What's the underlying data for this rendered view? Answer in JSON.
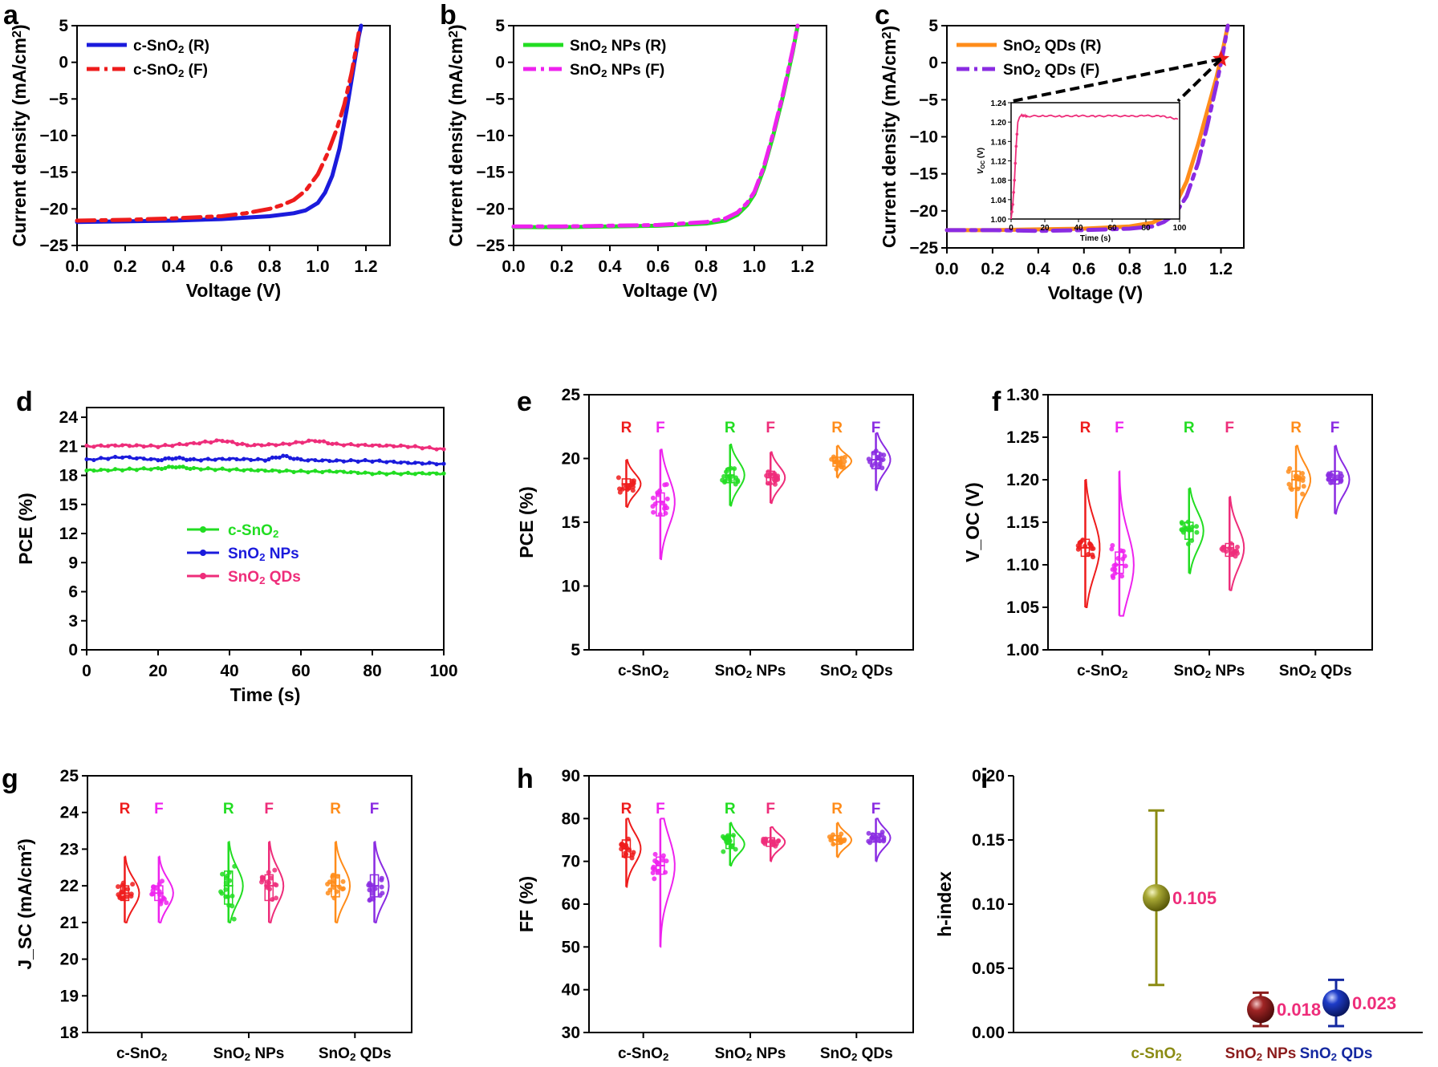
{
  "colors": {
    "blue": "#1b1bdc",
    "red": "#ee1c1c",
    "green": "#22dd22",
    "magenta": "#ee22ee",
    "orange": "#ff8c1a",
    "purple": "#8a2be2",
    "pink": "#ee2d7a",
    "olive": "#8b8b13",
    "maroon": "#8b1c1c",
    "navy": "#1428a0"
  },
  "chart_data": [
    {
      "panel": "a",
      "type": "line",
      "xlabel": "Voltage (V)",
      "ylabel": "Current density (mA/cm²)",
      "xlim": [
        0,
        1.3
      ],
      "ylim": [
        -25,
        5
      ],
      "xticks": [
        "0.0",
        "0.2",
        "0.4",
        "0.6",
        "0.8",
        "1.0",
        "1.2"
      ],
      "yticks": [
        "5",
        "0",
        "−5",
        "−10",
        "−15",
        "−20",
        "−25"
      ],
      "series": [
        {
          "name": "c-SnO₂ (R)",
          "style": "solid",
          "color": "#1b1bdc",
          "x": [
            0,
            0.2,
            0.4,
            0.6,
            0.8,
            0.9,
            0.95,
            1.0,
            1.03,
            1.06,
            1.09,
            1.12,
            1.15,
            1.17,
            1.18
          ],
          "y": [
            -21.8,
            -21.7,
            -21.6,
            -21.4,
            -21.0,
            -20.6,
            -20.2,
            -19.2,
            -17.8,
            -15.5,
            -11.8,
            -6.5,
            -0.5,
            3.5,
            5
          ]
        },
        {
          "name": "c-SnO₂ (F)",
          "style": "dashdot",
          "color": "#ee1c1c",
          "x": [
            0,
            0.2,
            0.4,
            0.6,
            0.7,
            0.8,
            0.85,
            0.9,
            0.95,
            1.0,
            1.04,
            1.08,
            1.11,
            1.14,
            1.16,
            1.17
          ],
          "y": [
            -21.6,
            -21.5,
            -21.3,
            -21.0,
            -20.6,
            -20.0,
            -19.5,
            -18.8,
            -17.5,
            -15.3,
            -12.5,
            -9.0,
            -5.8,
            -1.5,
            2.0,
            4.0
          ]
        }
      ]
    },
    {
      "panel": "b",
      "type": "line",
      "xlabel": "Voltage (V)",
      "ylabel": "Current density (mA/cm²)",
      "xlim": [
        0,
        1.3
      ],
      "ylim": [
        -25,
        5
      ],
      "xticks": [
        "0.0",
        "0.2",
        "0.4",
        "0.6",
        "0.8",
        "1.0",
        "1.2"
      ],
      "yticks": [
        "5",
        "0",
        "−5",
        "−10",
        "−15",
        "−20",
        "−25"
      ],
      "series": [
        {
          "name": "SnO₂ NPs (R)",
          "style": "solid",
          "color": "#22dd22",
          "x": [
            0,
            0.2,
            0.4,
            0.6,
            0.8,
            0.88,
            0.93,
            0.97,
            1.0,
            1.04,
            1.08,
            1.12,
            1.16,
            1.18
          ],
          "y": [
            -22.5,
            -22.5,
            -22.4,
            -22.3,
            -22.0,
            -21.6,
            -20.8,
            -19.5,
            -18.0,
            -14.5,
            -9.8,
            -4.5,
            1.5,
            5
          ]
        },
        {
          "name": "SnO₂ NPs (F)",
          "style": "dashdot",
          "color": "#ee22ee",
          "x": [
            0,
            0.2,
            0.4,
            0.6,
            0.8,
            0.88,
            0.93,
            0.97,
            1.0,
            1.04,
            1.08,
            1.12,
            1.16,
            1.18
          ],
          "y": [
            -22.4,
            -22.4,
            -22.3,
            -22.2,
            -21.8,
            -21.3,
            -20.5,
            -19.2,
            -17.7,
            -14.2,
            -9.5,
            -4.2,
            1.8,
            5
          ]
        }
      ]
    },
    {
      "panel": "c",
      "type": "line",
      "xlabel": "Voltage (V)",
      "ylabel": "Current density (mA/cm²)",
      "xlim": [
        0,
        1.3
      ],
      "ylim": [
        -25,
        5
      ],
      "xticks": [
        "0.0",
        "0.2",
        "0.4",
        "0.6",
        "0.8",
        "1.0",
        "1.2"
      ],
      "yticks": [
        "5",
        "0",
        "−5",
        "−10",
        "−15",
        "−20",
        "−25"
      ],
      "marker": {
        "x": 1.2,
        "y": 0.5,
        "shape": "star",
        "color": "#ee1c1c"
      },
      "series": [
        {
          "name": "SnO₂ QDs (R)",
          "style": "solid",
          "color": "#ff8c1a",
          "x": [
            0,
            0.2,
            0.4,
            0.6,
            0.8,
            0.9,
            0.95,
            1.0,
            1.05,
            1.1,
            1.14,
            1.18,
            1.21,
            1.23
          ],
          "y": [
            -22.6,
            -22.6,
            -22.5,
            -22.4,
            -22.1,
            -21.6,
            -20.8,
            -19.2,
            -16.0,
            -11.0,
            -6.5,
            -2.0,
            2.0,
            5
          ]
        },
        {
          "name": "SnO₂ QDs (F)",
          "style": "dashdot",
          "color": "#8a2be2",
          "x": [
            0,
            0.2,
            0.4,
            0.6,
            0.8,
            0.9,
            0.95,
            1.0,
            1.05,
            1.1,
            1.14,
            1.18,
            1.21,
            1.23
          ],
          "y": [
            -22.6,
            -22.6,
            -22.7,
            -22.6,
            -22.4,
            -22.1,
            -21.5,
            -20.4,
            -18.0,
            -13.5,
            -8.5,
            -3.0,
            1.5,
            5
          ]
        }
      ],
      "inset": {
        "type": "line",
        "xlabel": "Time (s)",
        "ylabel": "V_OC (V)",
        "xlim": [
          0,
          100
        ],
        "ylim": [
          1.0,
          1.24
        ],
        "xticks": [
          "0",
          "20",
          "40",
          "60",
          "80",
          "100"
        ],
        "yticks": [
          "1.24",
          "1.20",
          "1.16",
          "1.12",
          "1.08",
          "1.04",
          "1.00"
        ],
        "series": [
          {
            "name": "Voc",
            "color": "#ee2d7a",
            "x": [
              0,
              1,
              2,
              3,
              4,
              5,
              6,
              8,
              10,
              20,
              30,
              40,
              50,
              60,
              70,
              80,
              90,
              99
            ],
            "y": [
              1.0,
              1.03,
              1.08,
              1.15,
              1.2,
              1.21,
              1.214,
              1.213,
              1.212,
              1.213,
              1.212,
              1.213,
              1.212,
              1.213,
              1.212,
              1.213,
              1.212,
              1.206
            ]
          }
        ]
      }
    },
    {
      "panel": "d",
      "type": "line",
      "xlabel": "Time (s)",
      "ylabel": "PCE (%)",
      "xlim": [
        0,
        100
      ],
      "ylim": [
        0,
        25
      ],
      "xticks": [
        "0",
        "20",
        "40",
        "60",
        "80",
        "100"
      ],
      "yticks": [
        "24",
        "21",
        "18",
        "15",
        "12",
        "9",
        "6",
        "3",
        "0"
      ],
      "series": [
        {
          "name": "c-SnO₂",
          "color": "#22dd22",
          "x": [
            0,
            10,
            20,
            25,
            30,
            40,
            50,
            60,
            70,
            80,
            90,
            100
          ],
          "y": [
            18.5,
            18.6,
            18.7,
            18.9,
            18.7,
            18.6,
            18.5,
            18.4,
            18.4,
            18.2,
            18.2,
            18.2
          ]
        },
        {
          "name": "SnO₂ NPs",
          "color": "#1b1bdc",
          "x": [
            0,
            10,
            20,
            25,
            30,
            40,
            50,
            55,
            60,
            70,
            80,
            90,
            100
          ],
          "y": [
            19.6,
            19.9,
            19.6,
            19.8,
            19.6,
            19.7,
            19.6,
            20.0,
            19.6,
            19.5,
            19.5,
            19.3,
            19.2
          ]
        },
        {
          "name": "SnO₂ QDs",
          "color": "#ee2d7a",
          "x": [
            0,
            10,
            20,
            30,
            38,
            45,
            55,
            64,
            70,
            80,
            90,
            100
          ],
          "y": [
            21.0,
            21.1,
            21.0,
            21.3,
            21.6,
            21.1,
            21.2,
            21.6,
            21.2,
            21.1,
            21.0,
            20.7
          ]
        }
      ]
    },
    {
      "panel": "e",
      "type": "violin",
      "ylabel": "PCE (%)",
      "ylim": [
        5,
        25
      ],
      "yticks": [
        "25",
        "20",
        "15",
        "10",
        "5"
      ],
      "categories": [
        "c-SnO₂",
        "SnO₂ NPs",
        "SnO₂ QDs"
      ],
      "subgroups": [
        "R",
        "F"
      ],
      "series": [
        {
          "name": "c-SnO₂ R",
          "color": "#ee1c1c",
          "min": 16.2,
          "max": 19.9,
          "median": 18.0,
          "q1": 17.6,
          "q3": 18.4
        },
        {
          "name": "c-SnO₂ F",
          "color": "#ee22ee",
          "min": 12.1,
          "max": 20.7,
          "median": 16.6,
          "q1": 15.5,
          "q3": 17.3
        },
        {
          "name": "SnO₂ NPs R",
          "color": "#22dd22",
          "min": 16.3,
          "max": 21.1,
          "median": 18.7,
          "q1": 18.1,
          "q3": 19.2
        },
        {
          "name": "SnO₂ NPs F",
          "color": "#ee2d7a",
          "min": 16.5,
          "max": 20.5,
          "median": 18.5,
          "q1": 18.0,
          "q3": 19.0
        },
        {
          "name": "SnO₂ QDs R",
          "color": "#ff8c1a",
          "min": 18.5,
          "max": 21.0,
          "median": 19.8,
          "q1": 19.4,
          "q3": 20.1
        },
        {
          "name": "SnO₂ QDs F",
          "color": "#8a2be2",
          "min": 17.5,
          "max": 22.0,
          "median": 19.9,
          "q1": 19.2,
          "q3": 20.5
        }
      ]
    },
    {
      "panel": "f",
      "type": "violin",
      "ylabel": "V_OC (V)",
      "ylim": [
        1.0,
        1.3
      ],
      "yticks": [
        "1.30",
        "1.25",
        "1.20",
        "1.15",
        "1.10",
        "1.05",
        "1.00"
      ],
      "categories": [
        "c-SnO₂",
        "SnO₂ NPs",
        "SnO₂ QDs"
      ],
      "subgroups": [
        "R",
        "F"
      ],
      "series": [
        {
          "name": "c-SnO₂ R",
          "color": "#ee1c1c",
          "min": 1.05,
          "max": 1.2,
          "median": 1.12,
          "q1": 1.11,
          "q3": 1.13
        },
        {
          "name": "c-SnO₂ F",
          "color": "#ee22ee",
          "min": 1.04,
          "max": 1.21,
          "median": 1.1,
          "q1": 1.09,
          "q3": 1.115
        },
        {
          "name": "SnO₂ NPs R",
          "color": "#22dd22",
          "min": 1.09,
          "max": 1.19,
          "median": 1.14,
          "q1": 1.13,
          "q3": 1.15
        },
        {
          "name": "SnO₂ NPs F",
          "color": "#ee2d7a",
          "min": 1.07,
          "max": 1.18,
          "median": 1.12,
          "q1": 1.11,
          "q3": 1.125
        },
        {
          "name": "SnO₂ QDs R",
          "color": "#ff8c1a",
          "min": 1.155,
          "max": 1.24,
          "median": 1.2,
          "q1": 1.19,
          "q3": 1.21
        },
        {
          "name": "SnO₂ QDs F",
          "color": "#8a2be2",
          "min": 1.16,
          "max": 1.24,
          "median": 1.2,
          "q1": 1.195,
          "q3": 1.21
        }
      ]
    },
    {
      "panel": "g",
      "type": "violin",
      "ylabel": "J_SC (mA/cm²)",
      "ylim": [
        18,
        25
      ],
      "yticks": [
        "25",
        "24",
        "23",
        "22",
        "21",
        "20",
        "19",
        "18"
      ],
      "categories": [
        "c-SnO₂",
        "SnO₂ NPs",
        "SnO₂ QDs"
      ],
      "subgroups": [
        "R",
        "F"
      ],
      "series": [
        {
          "name": "c-SnO₂ R",
          "color": "#ee1c1c",
          "min": 21.0,
          "max": 22.8,
          "median": 21.8,
          "q1": 21.6,
          "q3": 22.0
        },
        {
          "name": "c-SnO₂ F",
          "color": "#ee22ee",
          "min": 21.0,
          "max": 22.8,
          "median": 21.8,
          "q1": 21.6,
          "q3": 22.0
        },
        {
          "name": "SnO₂ NPs R",
          "color": "#22dd22",
          "min": 21.0,
          "max": 23.2,
          "median": 22.0,
          "q1": 21.5,
          "q3": 22.4
        },
        {
          "name": "SnO₂ NPs F",
          "color": "#ee2d7a",
          "min": 21.0,
          "max": 23.2,
          "median": 22.0,
          "q1": 21.6,
          "q3": 22.3
        },
        {
          "name": "SnO₂ QDs R",
          "color": "#ff8c1a",
          "min": 21.0,
          "max": 23.2,
          "median": 22.0,
          "q1": 21.7,
          "q3": 22.3
        },
        {
          "name": "SnO₂ QDs F",
          "color": "#8a2be2",
          "min": 21.0,
          "max": 23.2,
          "median": 22.0,
          "q1": 21.7,
          "q3": 22.3
        }
      ]
    },
    {
      "panel": "h",
      "type": "violin",
      "ylabel": "FF (%)",
      "ylim": [
        30,
        90
      ],
      "yticks": [
        "90",
        "80",
        "70",
        "60",
        "50",
        "40",
        "30"
      ],
      "categories": [
        "c-SnO₂",
        "SnO₂ NPs",
        "SnO₂ QDs"
      ],
      "subgroups": [
        "R",
        "F"
      ],
      "series": [
        {
          "name": "c-SnO₂ R",
          "color": "#ee1c1c",
          "min": 64,
          "max": 80,
          "median": 73,
          "q1": 71,
          "q3": 75
        },
        {
          "name": "c-SnO₂ F",
          "color": "#ee22ee",
          "min": 50,
          "max": 80,
          "median": 69,
          "q1": 67,
          "q3": 71
        },
        {
          "name": "SnO₂ NPs R",
          "color": "#22dd22",
          "min": 69,
          "max": 79,
          "median": 74,
          "q1": 73,
          "q3": 76
        },
        {
          "name": "SnO₂ NPs F",
          "color": "#ee2d7a",
          "min": 70,
          "max": 78,
          "median": 74.5,
          "q1": 73.5,
          "q3": 75.5
        },
        {
          "name": "SnO₂ QDs R",
          "color": "#ff8c1a",
          "min": 71,
          "max": 79,
          "median": 75,
          "q1": 74,
          "q3": 76
        },
        {
          "name": "SnO₂ QDs F",
          "color": "#8a2be2",
          "min": 70,
          "max": 80,
          "median": 75.5,
          "q1": 74.5,
          "q3": 76.5
        }
      ]
    },
    {
      "panel": "i",
      "type": "scatter",
      "ylabel": "h-index",
      "ylim": [
        0,
        0.2
      ],
      "yticks": [
        "0.20",
        "0.15",
        "0.10",
        "0.05",
        "0.00"
      ],
      "categories": [
        "c-SnO₂",
        "SnO₂ NPs",
        "SnO₂ QDs"
      ],
      "series": [
        {
          "name": "c-SnO₂",
          "color": "#8b8b13",
          "value": 0.105,
          "err_low": 0.037,
          "err_high": 0.173,
          "label": "0.105"
        },
        {
          "name": "SnO₂ NPs",
          "color": "#8b1c1c",
          "value": 0.018,
          "err_low": 0.005,
          "err_high": 0.031,
          "label": "0.018"
        },
        {
          "name": "SnO₂ QDs",
          "color": "#1428a0",
          "value": 0.023,
          "err_low": 0.005,
          "err_high": 0.041,
          "label": "0.023"
        }
      ]
    }
  ]
}
